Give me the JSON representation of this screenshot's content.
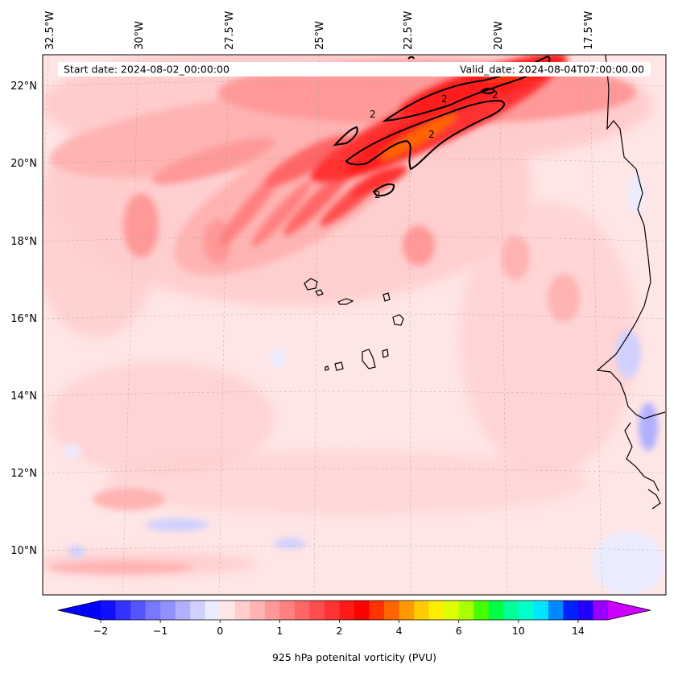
{
  "chart_data": {
    "type": "heatmap",
    "title": "",
    "field": "925 hPa potenital vorticity (PVU)",
    "header": {
      "start_label": "Start date: 2024-08-02_00:00:00",
      "valid_label": "Valid_date: 2024-08-04T07:00:00.00"
    },
    "lon_ticks": [
      {
        "value": -32.5,
        "label": "32.5°W"
      },
      {
        "value": -30.0,
        "label": "30°W"
      },
      {
        "value": -27.5,
        "label": "27.5°W"
      },
      {
        "value": -25.0,
        "label": "25°W"
      },
      {
        "value": -22.5,
        "label": "22.5°W"
      },
      {
        "value": -20.0,
        "label": "20°W"
      },
      {
        "value": -17.5,
        "label": "17.5°W"
      }
    ],
    "lat_ticks": [
      {
        "value": 22,
        "label": "22°N"
      },
      {
        "value": 20,
        "label": "20°N"
      },
      {
        "value": 18,
        "label": "18°N"
      },
      {
        "value": 16,
        "label": "16°N"
      },
      {
        "value": 14,
        "label": "14°N"
      },
      {
        "value": 12,
        "label": "12°N"
      },
      {
        "value": 10,
        "label": "10°N"
      }
    ],
    "extent": {
      "lon": [
        -32.6,
        -16.2
      ],
      "lat": [
        8.9,
        22.8
      ]
    },
    "contour": {
      "level": 2,
      "labels": [
        "2",
        "2",
        "2",
        "2",
        "2"
      ]
    },
    "colorbar": {
      "levels": [
        -2,
        -1.75,
        -1.5,
        -1.25,
        -1,
        -0.75,
        -0.5,
        -0.25,
        0,
        0.25,
        0.5,
        0.75,
        1,
        1.25,
        1.5,
        1.75,
        2,
        2.5,
        3,
        3.5,
        4,
        4.5,
        5,
        5.5,
        6,
        7,
        8,
        9,
        10,
        11,
        12,
        13,
        14,
        15
      ],
      "colors": [
        "#1010ff",
        "#3333ff",
        "#5555ff",
        "#7777ff",
        "#9090ff",
        "#b0b0ff",
        "#d0d0ff",
        "#ececff",
        "#ffe6e6",
        "#ffcccc",
        "#ffb3b3",
        "#ff9999",
        "#ff8080",
        "#ff6666",
        "#ff4d4d",
        "#ff3333",
        "#ff1a1a",
        "#ff0000",
        "#ff3300",
        "#ff6600",
        "#ff9900",
        "#ffcc00",
        "#ffee00",
        "#ddff00",
        "#aaff00",
        "#44ff00",
        "#00ff44",
        "#00ff99",
        "#00ffcc",
        "#00e5ff",
        "#0088ff",
        "#0022ff",
        "#2200ff",
        "#9900ff"
      ],
      "extend_low_color": "#0000ff",
      "extend_high_color": "#cc00ff",
      "tick_values": [
        -2,
        -1,
        0,
        1,
        2,
        4,
        6,
        10,
        14
      ],
      "tick_labels": [
        "−2",
        "−1",
        "0",
        "1",
        "2",
        "4",
        "6",
        "10",
        "14"
      ],
      "label": "925 hPa potenital vorticity (PVU)"
    },
    "features": [
      {
        "type": "high_pv_band",
        "lon": [
          -27.5,
          -19.6
        ],
        "lat": [
          18.6,
          22.6
        ],
        "max_value": 3
      },
      {
        "type": "low_pv_band",
        "lon": [
          -32.6,
          -26.0
        ],
        "lat": [
          9.4,
          10.0
        ],
        "value": -0.25
      },
      {
        "type": "islands",
        "name": "Cape Verde",
        "lon": [
          -25.4,
          -22.7
        ],
        "lat": [
          14.8,
          17.2
        ]
      }
    ]
  }
}
